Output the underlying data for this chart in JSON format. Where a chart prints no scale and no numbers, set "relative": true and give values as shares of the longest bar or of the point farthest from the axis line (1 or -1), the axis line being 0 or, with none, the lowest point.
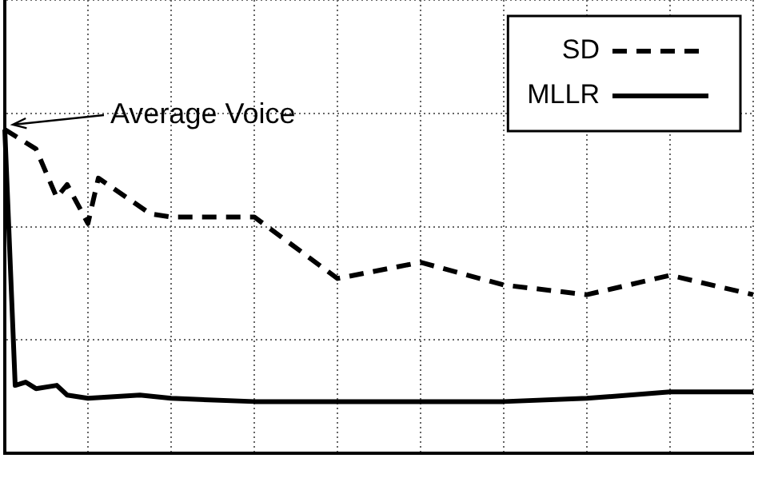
{
  "chart_data": {
    "type": "line",
    "relative": true,
    "grid": true,
    "legend": "top right",
    "marker": "none",
    "categories": [
      null,
      null,
      null,
      null,
      null,
      null,
      null,
      null,
      null,
      null,
      null,
      null,
      null,
      null,
      null,
      null,
      null,
      null,
      null,
      null,
      null,
      null,
      null,
      null,
      null,
      null,
      null,
      null,
      null,
      null,
      null,
      null,
      null,
      null,
      null,
      null,
      null,
      null,
      null,
      null,
      null,
      null,
      null,
      null,
      null,
      null,
      null,
      null,
      null,
      null,
      null,
      null,
      null,
      null,
      null,
      null,
      null,
      null,
      null,
      null,
      null,
      null,
      null,
      null,
      null,
      null,
      null,
      null,
      null,
      null,
      null,
      null,
      null
    ],
    "series": [
      {
        "name": "SD",
        "color": "#000000",
        "line_style": "dashed",
        "values": [
          1,
          null,
          0.96,
          0.94,
          null,
          0.79,
          0.83,
          null,
          0.71,
          0.85,
          null,
          null,
          null,
          null,
          0.74,
          null,
          0.73,
          null,
          null,
          null,
          null,
          null,
          null,
          null,
          0.73,
          null,
          null,
          null,
          null,
          null,
          null,
          null,
          0.54,
          null,
          null,
          null,
          null,
          null,
          null,
          null,
          0.59,
          null,
          null,
          null,
          null,
          null,
          null,
          null,
          0.52,
          null,
          null,
          null,
          null,
          null,
          null,
          null,
          0.49,
          null,
          null,
          null,
          null,
          null,
          null,
          null,
          0.55,
          null,
          null,
          null,
          null,
          null,
          null,
          null,
          0.49
        ]
      },
      {
        "name": "MLLR",
        "color": "#000000",
        "line_style": "solid",
        "values": [
          1,
          0.21,
          0.22,
          0.2,
          null,
          0.21,
          0.18,
          null,
          0.17,
          null,
          null,
          null,
          null,
          0.18,
          null,
          null,
          0.17,
          null,
          null,
          null,
          null,
          null,
          null,
          null,
          0.16,
          null,
          null,
          null,
          null,
          null,
          null,
          null,
          0.16,
          null,
          null,
          null,
          null,
          null,
          null,
          null,
          0.16,
          null,
          null,
          null,
          null,
          null,
          null,
          null,
          0.16,
          null,
          null,
          null,
          null,
          null,
          null,
          null,
          0.17,
          null,
          null,
          null,
          null,
          null,
          null,
          null,
          0.19,
          null,
          null,
          null,
          null,
          null,
          null,
          null,
          0.19
        ]
      }
    ],
    "annotations": [
      "Average Voice"
    ]
  }
}
